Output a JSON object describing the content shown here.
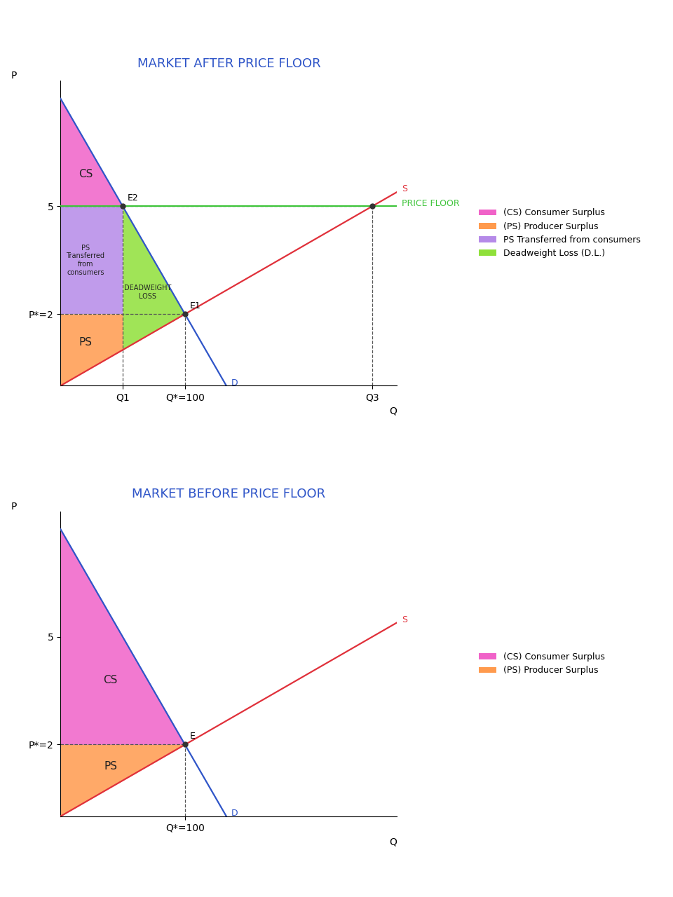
{
  "chart_data": [
    {
      "type": "line",
      "title": "MARKET AFTER PRICE FLOOR",
      "xlabel": "Q",
      "ylabel": "P",
      "xlim": [
        0,
        270
      ],
      "ylim": [
        0,
        8.5
      ],
      "xticks": [
        {
          "value": 50,
          "label": "Q1"
        },
        {
          "value": 100,
          "label": "Q*=100"
        },
        {
          "value": 250,
          "label": "Q3"
        }
      ],
      "yticks": [
        {
          "value": 2,
          "label": "P*=2"
        },
        5
      ],
      "legend": "right",
      "series": [
        {
          "name": "D",
          "color": "#2f55c8",
          "line_style": "solid",
          "x": [
            0,
            133
          ],
          "values": [
            8,
            0
          ]
        },
        {
          "name": "S",
          "color": "#e0303a",
          "line_style": "solid",
          "x": [
            0,
            270
          ],
          "values": [
            0,
            5.4
          ]
        },
        {
          "name": "PRICE FLOOR",
          "color": "#3ec43a",
          "line_style": "solid",
          "x": [
            0,
            270
          ],
          "values": [
            5,
            5
          ]
        }
      ],
      "areas": [
        {
          "name": "(CS) Consumer Surplus",
          "label": "CS",
          "color": "#f062c8",
          "x": [
            0,
            50
          ],
          "lower": [
            5,
            5
          ],
          "upper": [
            8,
            5
          ]
        },
        {
          "name": "(PS) Producer Surplus",
          "label": "PS",
          "color": "#ff9a4d",
          "x": [
            0,
            50
          ],
          "lower": [
            0,
            1
          ],
          "upper": [
            2,
            2
          ]
        },
        {
          "name": "PS Transferred from consumers",
          "label": "PS\nTransferred\nfrom\nconsumers",
          "color": "#b58ae8",
          "x": [
            0,
            50
          ],
          "lower": [
            2,
            2
          ],
          "upper": [
            5,
            5
          ]
        },
        {
          "name": "Deadweight Loss (D.L.)",
          "label": "DEADWEIGHT\nLOSS",
          "color": "#8fe03a",
          "x": [
            50,
            100
          ],
          "lower": [
            1,
            2
          ],
          "upper": [
            5,
            2
          ]
        }
      ],
      "points": [
        {
          "label": "E2",
          "x": 50,
          "y": 5
        },
        {
          "label": "E1",
          "x": 100,
          "y": 2
        },
        {
          "x": 250,
          "y": 5
        }
      ]
    },
    {
      "type": "line",
      "title": "MARKET BEFORE PRICE FLOOR",
      "xlabel": "Q",
      "ylabel": "P",
      "xlim": [
        0,
        270
      ],
      "ylim": [
        0,
        8.5
      ],
      "xticks": [
        {
          "value": 100,
          "label": "Q*=100"
        }
      ],
      "yticks": [
        {
          "value": 2,
          "label": "P*=2"
        },
        5
      ],
      "legend": "right",
      "series": [
        {
          "name": "D",
          "color": "#2f55c8",
          "line_style": "solid",
          "x": [
            0,
            133
          ],
          "values": [
            8,
            0
          ]
        },
        {
          "name": "S",
          "color": "#e0303a",
          "line_style": "solid",
          "x": [
            0,
            270
          ],
          "values": [
            0,
            5.4
          ]
        }
      ],
      "areas": [
        {
          "name": "(CS) Consumer Surplus",
          "label": "CS",
          "color": "#f062c8",
          "x": [
            0,
            100
          ],
          "lower": [
            2,
            2
          ],
          "upper": [
            8,
            2
          ]
        },
        {
          "name": "(PS) Producer Surplus",
          "label": "PS",
          "color": "#ff9a4d",
          "x": [
            0,
            100
          ],
          "lower": [
            0,
            2
          ],
          "upper": [
            2,
            2
          ]
        }
      ],
      "points": [
        {
          "label": "E",
          "x": 100,
          "y": 2
        }
      ]
    }
  ]
}
